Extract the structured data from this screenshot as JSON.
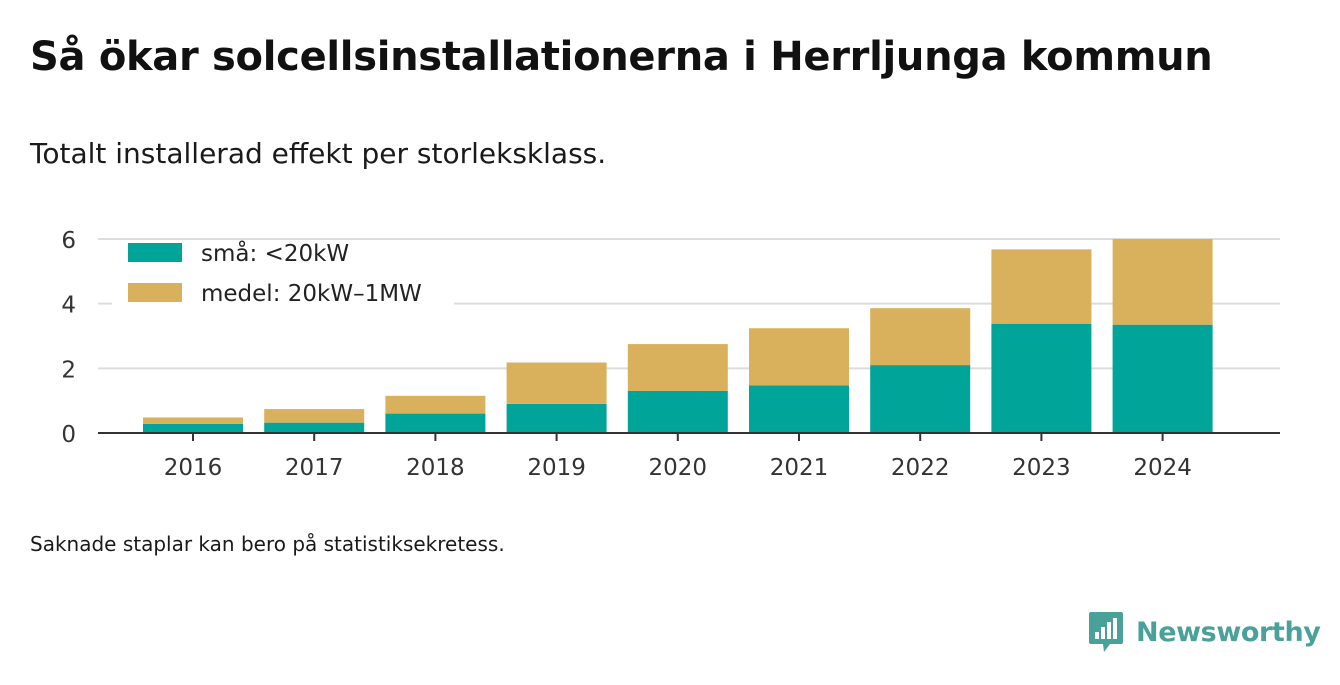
{
  "title": "Så ökar solcellsinstallationerna i Herrljunga kommun",
  "subtitle": "Totalt installerad effekt per storleksklass.",
  "footnote": "Saknade staplar kan bero på statistiksekretess.",
  "brand": {
    "name": "Newsworthy",
    "icon": "newsworthy-logo-icon",
    "color": "#4aa19a"
  },
  "chart_data": {
    "type": "bar",
    "stacked": true,
    "categories": [
      "2016",
      "2017",
      "2018",
      "2019",
      "2020",
      "2021",
      "2022",
      "2023",
      "2024"
    ],
    "series": [
      {
        "name": "små: <20kW",
        "color": "#00a499",
        "values": [
          0.28,
          0.32,
          0.6,
          0.9,
          1.3,
          1.47,
          2.1,
          3.38,
          3.35
        ]
      },
      {
        "name": "medel: 20kW–1MW",
        "color": "#d9b05c",
        "values": [
          0.2,
          0.42,
          0.55,
          1.28,
          1.45,
          1.77,
          1.76,
          2.3,
          2.65
        ]
      }
    ],
    "ylim": [
      0,
      6
    ],
    "yticks": [
      0,
      2,
      4,
      6
    ],
    "xlabel": "",
    "ylabel": "",
    "grid": true,
    "legend_position": "top-left"
  }
}
